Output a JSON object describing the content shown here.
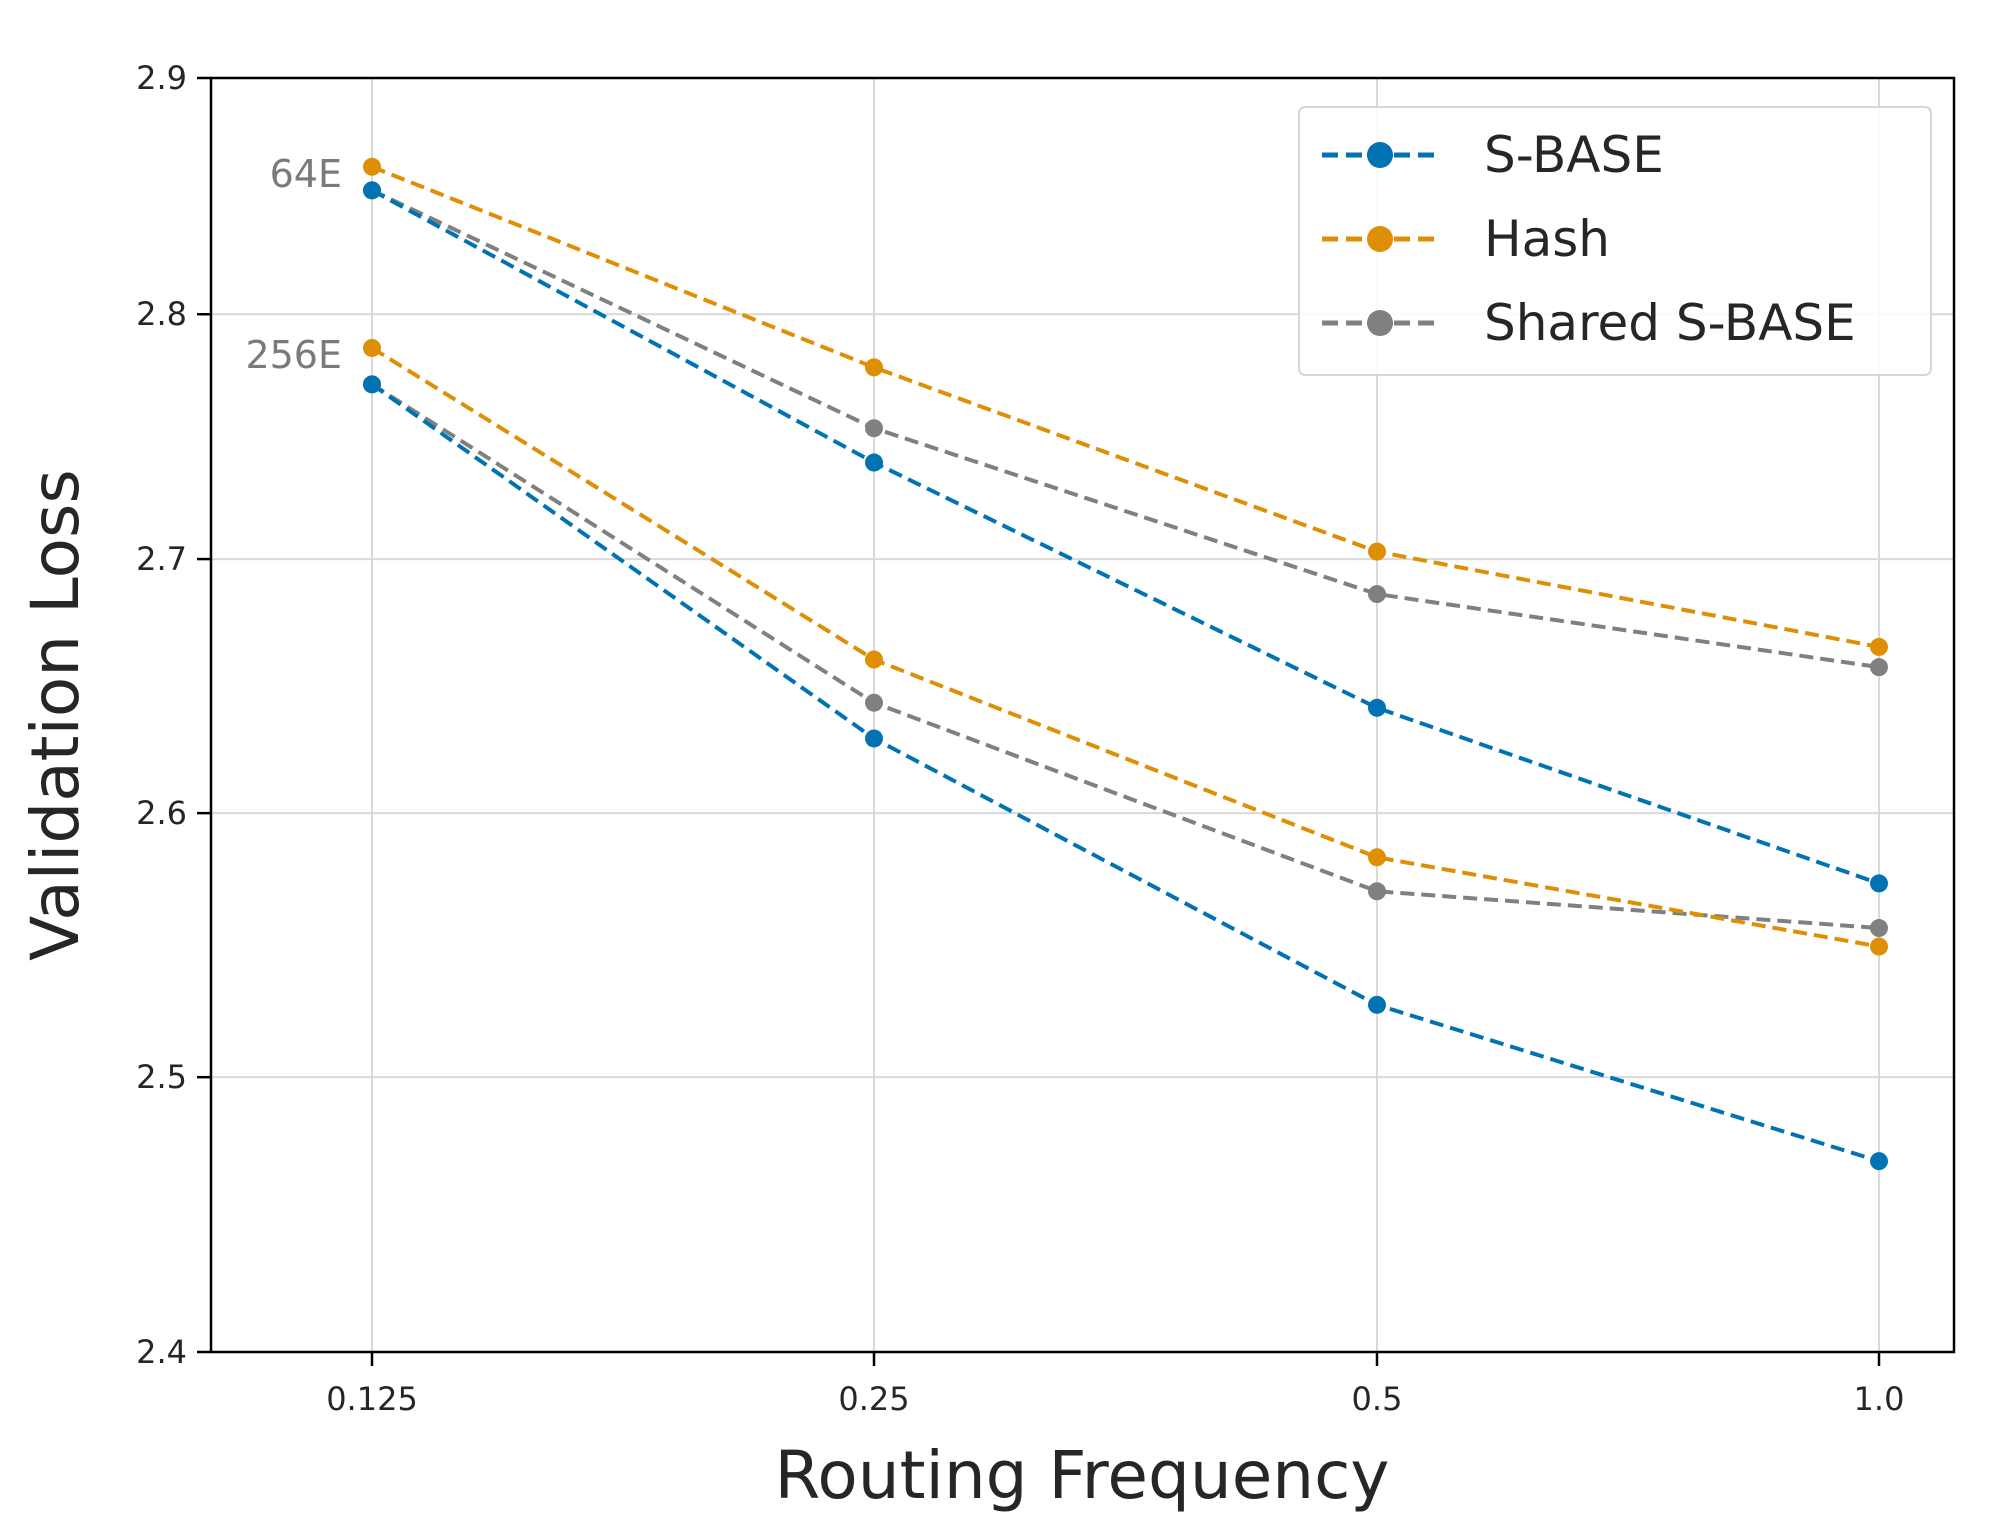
{
  "chart_data": {
    "type": "line",
    "title": "",
    "xlabel": "Routing Frequency",
    "ylabel": "Validation Loss",
    "x": [
      0.125,
      0.25,
      0.5,
      1.0
    ],
    "x_tick_labels": [
      "0.125",
      "0.25",
      "0.5",
      "1.0"
    ],
    "x_scale": "log2",
    "y_scale": "log",
    "ylim": [
      2.4,
      2.9
    ],
    "y_ticks": [
      2.4,
      2.5,
      2.6,
      2.7,
      2.8,
      2.9
    ],
    "y_tick_labels": [
      "2.4",
      "2.5",
      "2.6",
      "2.7",
      "2.8",
      "2.9"
    ],
    "grid": true,
    "legend_position": "top-right",
    "line_style": "dashed",
    "groups": [
      {
        "label": "64E",
        "series": [
          {
            "name": "S-BASE",
            "color": "#0173b2",
            "values": [
              2.852,
              2.739,
              2.641,
              2.573
            ]
          },
          {
            "name": "Hash",
            "color": "#de8f05",
            "values": [
              2.862,
              2.778,
              2.703,
              2.665
            ]
          },
          {
            "name": "Shared S-BASE",
            "color": "#808080",
            "values": [
              2.852,
              2.753,
              2.686,
              2.657
            ]
          }
        ]
      },
      {
        "label": "256E",
        "series": [
          {
            "name": "S-BASE",
            "color": "#0173b2",
            "values": [
              2.771,
              2.629,
              2.527,
              2.469
            ]
          },
          {
            "name": "Hash",
            "color": "#de8f05",
            "values": [
              2.786,
              2.66,
              2.583,
              2.549
            ]
          },
          {
            "name": "Shared S-BASE",
            "color": "#808080",
            "values": [
              2.771,
              2.643,
              2.57,
              2.556
            ]
          }
        ]
      }
    ],
    "legend": [
      {
        "name": "S-BASE",
        "color": "#0173b2"
      },
      {
        "name": "Hash",
        "color": "#de8f05"
      },
      {
        "name": "Shared S-BASE",
        "color": "#808080"
      }
    ]
  }
}
